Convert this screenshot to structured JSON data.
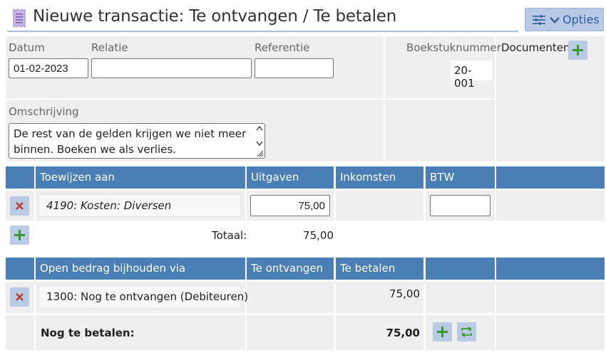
{
  "header": {
    "title": "Nieuwe transactie: Te ontvangen / Te betalen",
    "options_label": "Opties"
  },
  "form": {
    "date_label": "Datum",
    "date_value": "01-02-2023",
    "relation_label": "Relatie",
    "relation_value": "",
    "reference_label": "Referentie",
    "reference_value": "",
    "booknumber_label": "Boekstuknummer",
    "booknumber_value": "20-001",
    "documents_label": "Documenten",
    "description_label": "Omschrijving",
    "description_value": "De rest van de gelden krijgen we niet meer binnen. Boeken we als verlies."
  },
  "allocation": {
    "columns": [
      "Toewijzen aan",
      "Uitgaven",
      "Inkomsten",
      "BTW"
    ],
    "rows": [
      {
        "account": "4190: Kosten: Diversen",
        "expense": "75,00",
        "income": "",
        "vat": ""
      }
    ],
    "total_label": "Totaal:",
    "total_value": "75,00"
  },
  "open_amount": {
    "columns": [
      "Open bedrag bijhouden via",
      "Te ontvangen",
      "Te betalen"
    ],
    "rows": [
      {
        "account": "1300: Nog te ontvangen (Debiteuren)",
        "receivable": "",
        "payable": "75,00"
      }
    ],
    "summary_label": "Nog te betalen:",
    "summary_value": "75,00"
  },
  "colors": {
    "header_blue": "#4a7fb5",
    "button_bg": "#b9cbe4",
    "add_green": "#3b9a2f",
    "delete_red": "#c0392b"
  },
  "icons": [
    "receipt-icon",
    "sliders-icon",
    "chevron-down-icon",
    "plus-icon",
    "delete-x-icon",
    "repeat-icon",
    "resize-handle-icon"
  ]
}
